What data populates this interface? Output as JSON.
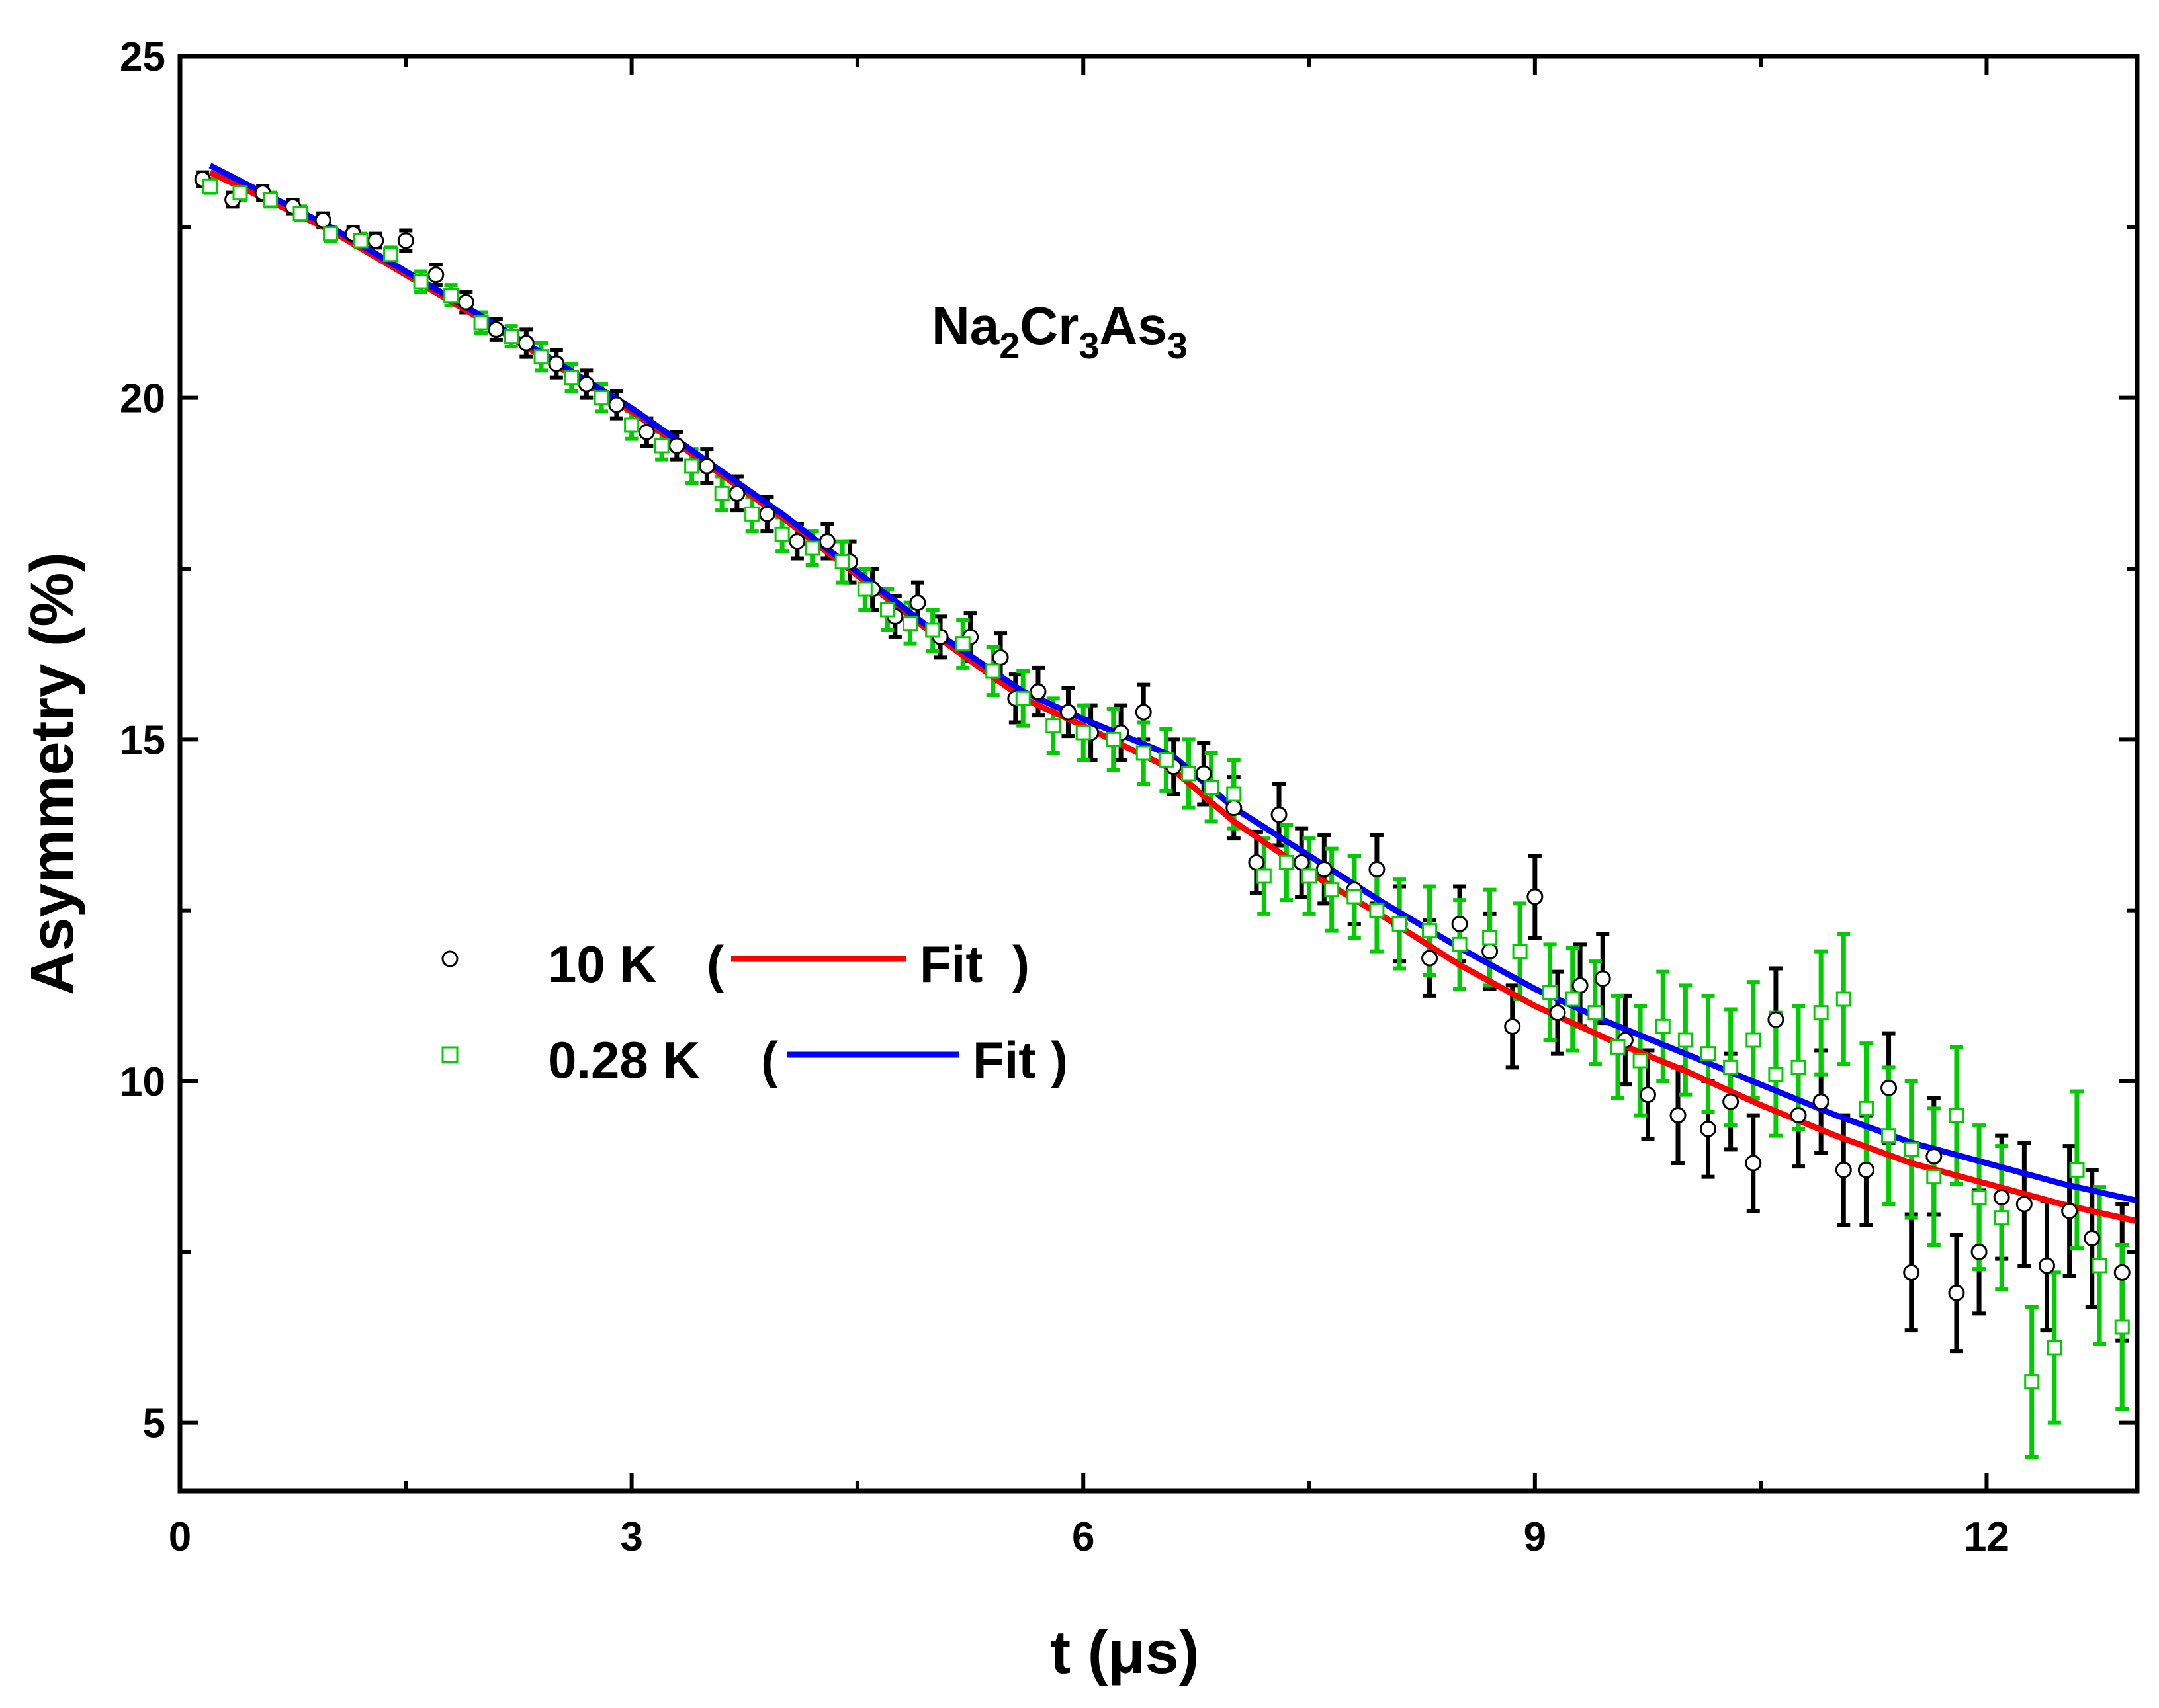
{
  "chart_data": {
    "type": "scatter",
    "title": "",
    "annotation": {
      "compound_parts": [
        {
          "t": "Na",
          "sub": "2"
        },
        {
          "t": "Cr",
          "sub": "3"
        },
        {
          "t": "As",
          "sub": "3"
        }
      ]
    },
    "xlabel": "t (μs)",
    "ylabel": "Asymmetry (%)",
    "xlim": [
      0,
      13
    ],
    "ylim": [
      4,
      25
    ],
    "x_ticks": [
      0,
      3,
      6,
      9,
      12
    ],
    "y_ticks": [
      5,
      10,
      15,
      20,
      25
    ],
    "x_minor": 1.5,
    "y_minor": 2.5,
    "legend": {
      "placement": "middle-left",
      "entries": [
        {
          "temp": "10 K",
          "paren_open": "(",
          "fit": "Fit",
          "paren_close": ")"
        },
        {
          "temp": "0.28 K",
          "paren_open": "(",
          "fit": "Fit",
          "paren_close": ")"
        }
      ]
    },
    "series": [
      {
        "name": "10 K",
        "marker": "circle",
        "color": "#000000",
        "fit_color": "#ff0000",
        "x": [
          0.15,
          0.35,
          0.55,
          0.75,
          0.95,
          1.15,
          1.3,
          1.5,
          1.7,
          1.9,
          2.1,
          2.3,
          2.5,
          2.7,
          2.9,
          3.1,
          3.3,
          3.5,
          3.7,
          3.9,
          4.1,
          4.3,
          4.45,
          4.6,
          4.75,
          4.9,
          5.05,
          5.25,
          5.45,
          5.55,
          5.7,
          5.9,
          6.05,
          6.25,
          6.4,
          6.6,
          6.8,
          7.0,
          7.15,
          7.3,
          7.45,
          7.6,
          7.8,
          7.95,
          8.1,
          8.3,
          8.5,
          8.7,
          8.85,
          9.0,
          9.15,
          9.3,
          9.45,
          9.6,
          9.75,
          9.95,
          10.15,
          10.3,
          10.45,
          10.6,
          10.75,
          10.9,
          11.05,
          11.2,
          11.35,
          11.5,
          11.65,
          11.8,
          11.95,
          12.1,
          12.25,
          12.4,
          12.55,
          12.7,
          12.9
        ],
        "y": [
          23.2,
          22.9,
          23.0,
          22.8,
          22.6,
          22.4,
          22.3,
          22.3,
          21.8,
          21.4,
          21.0,
          20.8,
          20.5,
          20.2,
          19.9,
          19.5,
          19.3,
          19.0,
          18.6,
          18.3,
          17.9,
          17.9,
          17.6,
          17.2,
          16.8,
          17.0,
          16.5,
          16.5,
          16.2,
          15.6,
          15.7,
          15.4,
          15.1,
          15.1,
          15.4,
          14.6,
          14.5,
          14.0,
          13.2,
          13.9,
          13.2,
          13.1,
          12.8,
          13.1,
          12.3,
          11.8,
          12.3,
          11.9,
          10.8,
          12.7,
          11.0,
          11.4,
          11.5,
          10.6,
          9.8,
          9.5,
          9.3,
          9.7,
          8.8,
          10.9,
          9.5,
          9.7,
          8.7,
          8.7,
          9.9,
          7.2,
          8.9,
          6.9,
          7.5,
          8.3,
          8.2,
          7.3,
          8.1,
          7.7,
          7.2
        ],
        "err": [
          0.1,
          0.1,
          0.1,
          0.1,
          0.1,
          0.1,
          0.1,
          0.15,
          0.15,
          0.15,
          0.15,
          0.2,
          0.2,
          0.2,
          0.2,
          0.2,
          0.2,
          0.25,
          0.25,
          0.25,
          0.25,
          0.25,
          0.3,
          0.3,
          0.3,
          0.3,
          0.3,
          0.35,
          0.35,
          0.35,
          0.35,
          0.35,
          0.4,
          0.4,
          0.4,
          0.4,
          0.45,
          0.45,
          0.45,
          0.45,
          0.5,
          0.5,
          0.5,
          0.5,
          0.55,
          0.55,
          0.55,
          0.55,
          0.6,
          0.6,
          0.6,
          0.6,
          0.65,
          0.65,
          0.65,
          0.7,
          0.7,
          0.7,
          0.7,
          0.75,
          0.75,
          0.75,
          0.8,
          0.8,
          0.8,
          0.85,
          0.85,
          0.85,
          0.9,
          0.9,
          0.9,
          0.95,
          0.95,
          1.0,
          1.0
        ]
      },
      {
        "name": "0.28 K",
        "marker": "square",
        "color": "#00cc00",
        "fit_color": "#0000ff",
        "x": [
          0.2,
          0.4,
          0.6,
          0.8,
          1.0,
          1.2,
          1.4,
          1.6,
          1.8,
          2.0,
          2.2,
          2.4,
          2.6,
          2.8,
          3.0,
          3.2,
          3.4,
          3.6,
          3.8,
          4.0,
          4.2,
          4.4,
          4.55,
          4.7,
          4.85,
          5.0,
          5.2,
          5.4,
          5.6,
          5.8,
          6.0,
          6.2,
          6.4,
          6.55,
          6.7,
          6.85,
          7.0,
          7.2,
          7.35,
          7.5,
          7.65,
          7.8,
          7.95,
          8.1,
          8.3,
          8.5,
          8.7,
          8.9,
          9.1,
          9.25,
          9.4,
          9.55,
          9.7,
          9.85,
          10.0,
          10.15,
          10.3,
          10.45,
          10.6,
          10.75,
          10.9,
          11.05,
          11.2,
          11.35,
          11.5,
          11.65,
          11.8,
          11.95,
          12.1,
          12.3,
          12.45,
          12.6,
          12.75,
          12.9
        ],
        "y": [
          23.1,
          23.0,
          22.9,
          22.7,
          22.4,
          22.3,
          22.1,
          21.7,
          21.5,
          21.1,
          20.9,
          20.6,
          20.3,
          20.0,
          19.6,
          19.3,
          19.0,
          18.6,
          18.3,
          18.0,
          17.8,
          17.6,
          17.2,
          16.9,
          16.7,
          16.6,
          16.4,
          16.0,
          15.6,
          15.2,
          15.1,
          15.0,
          14.8,
          14.7,
          14.5,
          14.3,
          14.2,
          13.0,
          13.2,
          13.0,
          12.8,
          12.7,
          12.5,
          12.3,
          12.2,
          12.0,
          12.1,
          11.9,
          11.3,
          11.2,
          11.0,
          10.5,
          10.3,
          10.8,
          10.6,
          10.4,
          10.2,
          10.6,
          10.1,
          10.2,
          11.0,
          11.2,
          9.6,
          9.2,
          9.0,
          8.6,
          9.5,
          8.3,
          8.0,
          5.6,
          6.1,
          8.7,
          7.3,
          6.4
        ],
        "err": [
          0.1,
          0.1,
          0.1,
          0.1,
          0.1,
          0.1,
          0.1,
          0.15,
          0.15,
          0.15,
          0.15,
          0.2,
          0.2,
          0.2,
          0.2,
          0.2,
          0.25,
          0.25,
          0.25,
          0.25,
          0.25,
          0.3,
          0.3,
          0.3,
          0.3,
          0.3,
          0.35,
          0.35,
          0.4,
          0.4,
          0.4,
          0.45,
          0.45,
          0.45,
          0.5,
          0.5,
          0.5,
          0.55,
          0.55,
          0.55,
          0.6,
          0.6,
          0.6,
          0.65,
          0.65,
          0.65,
          0.7,
          0.7,
          0.7,
          0.75,
          0.75,
          0.75,
          0.8,
          0.8,
          0.8,
          0.85,
          0.85,
          0.85,
          0.9,
          0.9,
          0.9,
          0.95,
          0.95,
          1.0,
          1.0,
          1.0,
          1.0,
          1.05,
          1.05,
          1.1,
          1.1,
          1.15,
          1.15,
          1.2
        ]
      }
    ],
    "fits": [
      {
        "name": "Fit (10 K)",
        "color": "#ff0000",
        "x": [
          0.2,
          1.0,
          2.0,
          3.0,
          4.0,
          5.0,
          5.6,
          6.0,
          6.6,
          7.0,
          7.5,
          8.0,
          8.5,
          9.0,
          9.5,
          10.0,
          10.5,
          11.0,
          11.5,
          12.0,
          12.5,
          13.0
        ],
        "y": [
          23.3,
          22.45,
          21.15,
          19.8,
          18.25,
          16.55,
          15.6,
          15.2,
          14.55,
          13.8,
          13.05,
          12.4,
          11.7,
          11.1,
          10.6,
          10.15,
          9.65,
          9.2,
          8.8,
          8.5,
          8.2,
          7.95
        ]
      },
      {
        "name": "Fit (0.28 K)",
        "color": "#0000ff",
        "x": [
          0.2,
          1.0,
          2.0,
          3.0,
          4.0,
          5.0,
          5.6,
          6.0,
          6.6,
          7.0,
          7.5,
          8.0,
          8.5,
          9.0,
          9.5,
          10.0,
          10.5,
          11.0,
          11.5,
          12.0,
          12.5,
          13.0
        ],
        "y": [
          23.4,
          22.5,
          21.2,
          19.85,
          18.3,
          16.6,
          15.7,
          15.3,
          14.75,
          14.0,
          13.3,
          12.6,
          11.95,
          11.35,
          10.85,
          10.4,
          9.95,
          9.5,
          9.1,
          8.8,
          8.5,
          8.25
        ]
      }
    ]
  }
}
